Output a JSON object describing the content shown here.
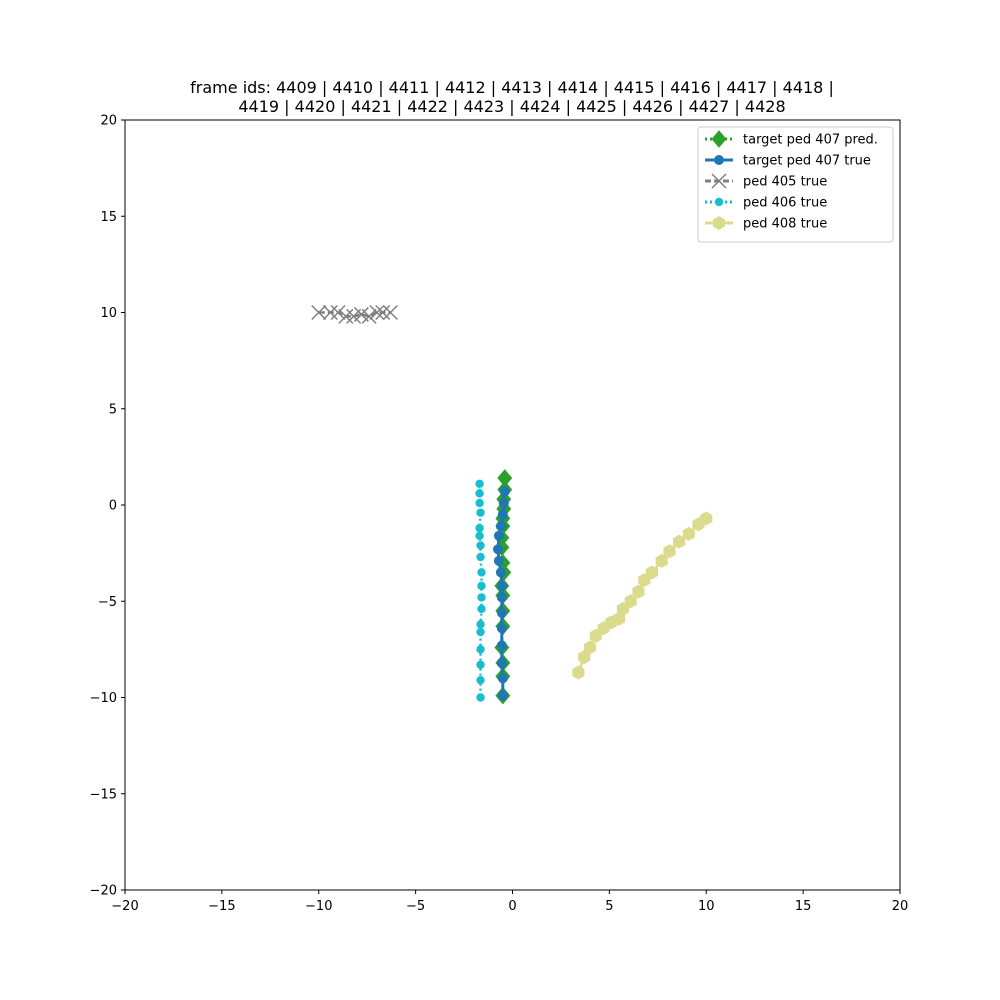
{
  "chart_data": {
    "type": "scatter",
    "title_lines": [
      "frame ids: 4409 | 4410 | 4411 | 4412 | 4413 | 4414 | 4415 | 4416 | 4417 | 4418 |",
      "4419 | 4420 | 4421 | 4422 | 4423 | 4424 | 4425 | 4426 | 4427 | 4428"
    ],
    "xlabel": "",
    "ylabel": "",
    "xlim": [
      -20,
      20
    ],
    "ylim": [
      -20,
      20
    ],
    "x_ticks": [
      -20,
      -15,
      -10,
      -5,
      0,
      5,
      10,
      15,
      20
    ],
    "y_ticks": [
      -20,
      -15,
      -10,
      -5,
      0,
      5,
      10,
      15,
      20
    ],
    "x_tick_labels": [
      "−20",
      "−15",
      "−10",
      "−5",
      "0",
      "5",
      "10",
      "15",
      "20"
    ],
    "y_tick_labels": [
      "−20",
      "−15",
      "−10",
      "−5",
      "0",
      "5",
      "10",
      "15",
      "20"
    ],
    "grid": false,
    "legend_position": "top-right",
    "series": [
      {
        "name": "target ped 407 pred.",
        "color": "#2ca02c",
        "marker": "diamond",
        "linestyle": "dotted",
        "points": [
          [
            -0.4,
            1.4
          ],
          [
            -0.4,
            0.8
          ],
          [
            -0.45,
            0.3
          ],
          [
            -0.45,
            -0.2
          ],
          [
            -0.5,
            -0.7
          ],
          [
            -0.5,
            -1.1
          ],
          [
            -0.55,
            -1.7
          ],
          [
            -0.55,
            -2.2
          ],
          [
            -0.5,
            -3.0
          ],
          [
            -0.45,
            -3.5
          ],
          [
            -0.55,
            -4.2
          ],
          [
            -0.5,
            -4.7
          ],
          [
            -0.5,
            -5.5
          ],
          [
            -0.5,
            -6.3
          ],
          [
            -0.55,
            -7.4
          ],
          [
            -0.5,
            -8.2
          ],
          [
            -0.5,
            -8.9
          ],
          [
            -0.5,
            -9.9
          ]
        ]
      },
      {
        "name": "target ped 407 true",
        "color": "#1f77b4",
        "marker": "circle",
        "linestyle": "solid",
        "points": [
          [
            -0.4,
            0.7
          ],
          [
            -0.45,
            0.1
          ],
          [
            -0.5,
            -0.5
          ],
          [
            -0.6,
            -1.1
          ],
          [
            -0.7,
            -1.6
          ],
          [
            -0.75,
            -2.3
          ],
          [
            -0.7,
            -2.9
          ],
          [
            -0.6,
            -3.5
          ],
          [
            -0.55,
            -4.2
          ],
          [
            -0.55,
            -4.8
          ],
          [
            -0.55,
            -5.6
          ],
          [
            -0.55,
            -6.4
          ],
          [
            -0.55,
            -7.3
          ],
          [
            -0.55,
            -8.2
          ],
          [
            -0.5,
            -9.0
          ],
          [
            -0.5,
            -9.9
          ]
        ]
      },
      {
        "name": "ped 405 true",
        "color": "#7f7f7f",
        "marker": "x",
        "linestyle": "dashed",
        "points": [
          [
            -10.0,
            10.0
          ],
          [
            -9.4,
            10.0
          ],
          [
            -9.0,
            10.0
          ],
          [
            -8.6,
            9.8
          ],
          [
            -8.2,
            9.8
          ],
          [
            -7.8,
            9.9
          ],
          [
            -7.4,
            9.8
          ],
          [
            -7.0,
            10.0
          ],
          [
            -6.7,
            10.0
          ],
          [
            -6.3,
            10.0
          ]
        ]
      },
      {
        "name": "ped 406 true",
        "color": "#17becf",
        "marker": "circle",
        "linestyle": "dotted",
        "points": [
          [
            -1.7,
            1.1
          ],
          [
            -1.7,
            0.6
          ],
          [
            -1.7,
            0.1
          ],
          [
            -1.65,
            -0.4
          ],
          [
            -1.7,
            -1.2
          ],
          [
            -1.7,
            -1.6
          ],
          [
            -1.65,
            -2.1
          ],
          [
            -1.65,
            -2.7
          ],
          [
            -1.6,
            -3.5
          ],
          [
            -1.6,
            -4.2
          ],
          [
            -1.6,
            -4.8
          ],
          [
            -1.6,
            -5.4
          ],
          [
            -1.65,
            -6.2
          ],
          [
            -1.65,
            -6.6
          ],
          [
            -1.65,
            -7.5
          ],
          [
            -1.65,
            -8.3
          ],
          [
            -1.65,
            -9.1
          ],
          [
            -1.65,
            -10.0
          ]
        ]
      },
      {
        "name": "ped 408 true",
        "color": "#dbdb8d",
        "marker": "hexagon",
        "linestyle": "solid",
        "points": [
          [
            3.4,
            -8.7
          ],
          [
            3.7,
            -7.9
          ],
          [
            4.0,
            -7.4
          ],
          [
            4.3,
            -6.8
          ],
          [
            4.7,
            -6.4
          ],
          [
            5.1,
            -6.1
          ],
          [
            5.5,
            -5.9
          ],
          [
            5.7,
            -5.4
          ],
          [
            6.1,
            -5.0
          ],
          [
            6.5,
            -4.5
          ],
          [
            6.8,
            -3.9
          ],
          [
            7.2,
            -3.5
          ],
          [
            7.7,
            -2.9
          ],
          [
            8.1,
            -2.4
          ],
          [
            8.6,
            -1.9
          ],
          [
            9.1,
            -1.5
          ],
          [
            9.6,
            -1.0
          ],
          [
            10.0,
            -0.7
          ]
        ]
      }
    ]
  }
}
